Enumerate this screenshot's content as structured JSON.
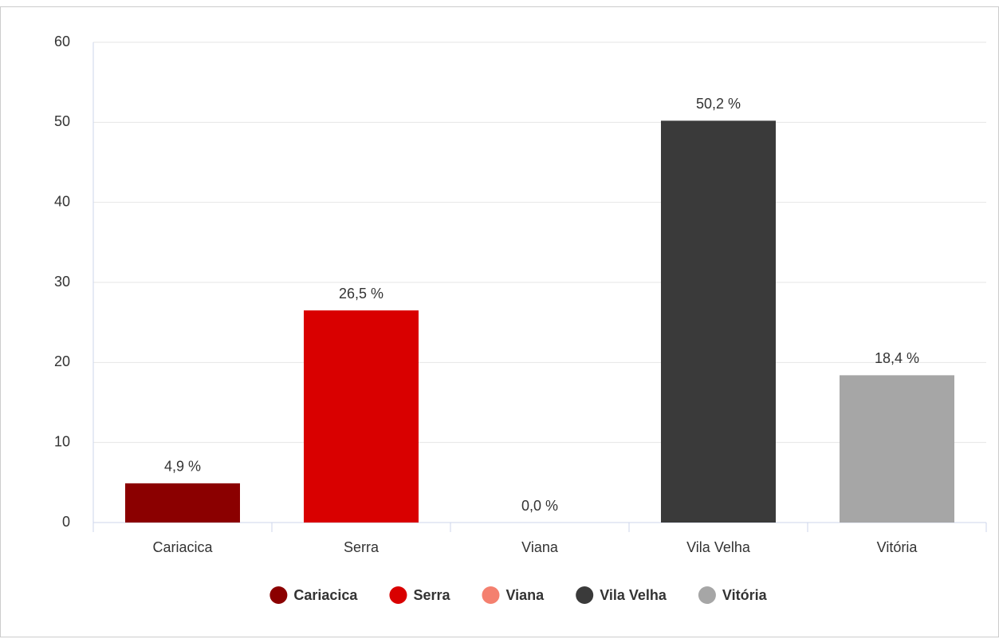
{
  "chart_data": {
    "type": "bar",
    "categories": [
      "Cariacica",
      "Serra",
      "Viana",
      "Vila Velha",
      "Vitória"
    ],
    "values": [
      4.9,
      26.5,
      0.0,
      50.2,
      18.4
    ],
    "value_labels": [
      "4,9 %",
      "26,5 %",
      "0,0 %",
      "50,2 %",
      "18,4 %"
    ],
    "colors": [
      "#8b0000",
      "#d90000",
      "#f4806f",
      "#3a3a3a",
      "#a6a6a6"
    ],
    "ylim": [
      0,
      60
    ],
    "yticks": [
      0,
      10,
      20,
      30,
      40,
      50,
      60
    ],
    "grid": true,
    "legend": "bottom"
  }
}
